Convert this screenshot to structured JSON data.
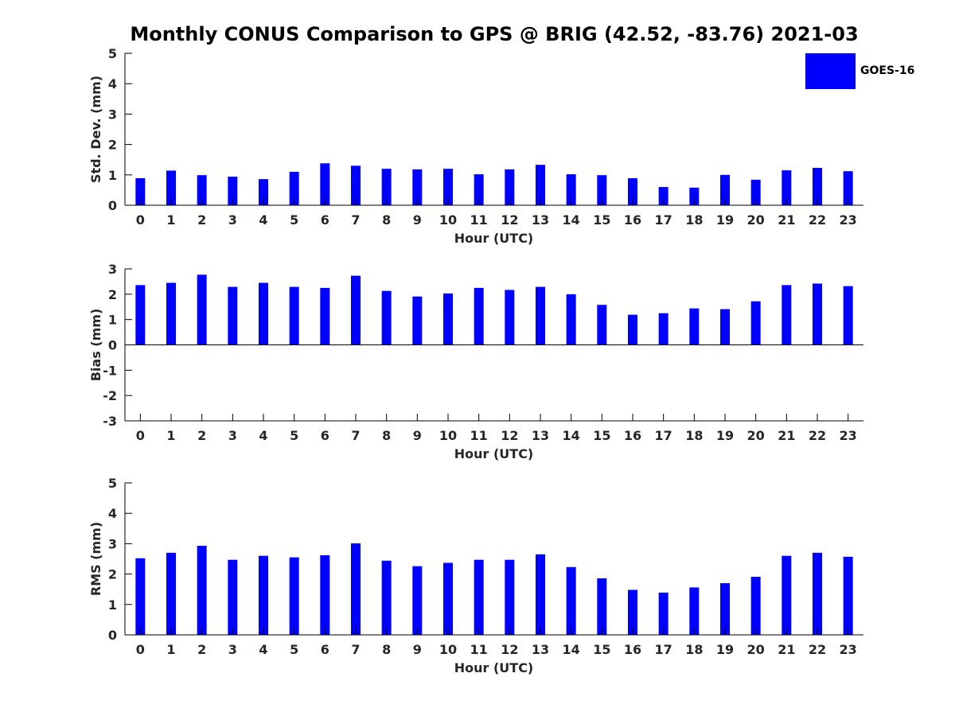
{
  "figure": {
    "title": "Monthly CONUS Comparison to GPS @ BRIG (42.52, -83.76) 2021-03",
    "legend": {
      "label": "GOES-16",
      "color": "#0000ff"
    }
  },
  "chart_data": [
    {
      "type": "bar",
      "categories": [
        "0",
        "1",
        "2",
        "3",
        "4",
        "5",
        "6",
        "7",
        "8",
        "9",
        "10",
        "11",
        "12",
        "13",
        "14",
        "15",
        "16",
        "17",
        "18",
        "19",
        "20",
        "21",
        "22",
        "23"
      ],
      "series": [
        {
          "name": "GOES-16",
          "values": [
            0.89,
            1.14,
            0.99,
            0.94,
            0.86,
            1.1,
            1.38,
            1.3,
            1.2,
            1.18,
            1.2,
            1.02,
            1.18,
            1.33,
            1.02,
            0.99,
            0.89,
            0.6,
            0.58,
            1.0,
            0.84,
            1.15,
            1.23,
            1.12
          ]
        }
      ],
      "xlabel": "Hour (UTC)",
      "ylabel": "Std. Dev. (mm)",
      "ylim": [
        0,
        5
      ],
      "yticks": [
        "0",
        "1",
        "2",
        "3",
        "4",
        "5"
      ],
      "grid": false
    },
    {
      "type": "bar",
      "categories": [
        "0",
        "1",
        "2",
        "3",
        "4",
        "5",
        "6",
        "7",
        "8",
        "9",
        "10",
        "11",
        "12",
        "13",
        "14",
        "15",
        "16",
        "17",
        "18",
        "19",
        "20",
        "21",
        "22",
        "23"
      ],
      "series": [
        {
          "name": "GOES-16",
          "values": [
            2.36,
            2.45,
            2.77,
            2.29,
            2.45,
            2.29,
            2.25,
            2.73,
            2.13,
            1.91,
            2.03,
            2.25,
            2.17,
            2.29,
            2.0,
            1.58,
            1.19,
            1.25,
            1.44,
            1.41,
            1.72,
            2.36,
            2.42,
            2.32
          ]
        }
      ],
      "xlabel": "Hour (UTC)",
      "ylabel": "Bias (mm)",
      "ylim": [
        -3,
        3
      ],
      "yticks": [
        "-3",
        "-2",
        "-1",
        "0",
        "1",
        "2",
        "3"
      ],
      "grid": false
    },
    {
      "type": "bar",
      "categories": [
        "0",
        "1",
        "2",
        "3",
        "4",
        "5",
        "6",
        "7",
        "8",
        "9",
        "10",
        "11",
        "12",
        "13",
        "14",
        "15",
        "16",
        "17",
        "18",
        "19",
        "20",
        "21",
        "22",
        "23"
      ],
      "series": [
        {
          "name": "GOES-16",
          "values": [
            2.52,
            2.7,
            2.93,
            2.47,
            2.6,
            2.55,
            2.62,
            3.01,
            2.44,
            2.26,
            2.37,
            2.47,
            2.47,
            2.65,
            2.23,
            1.86,
            1.48,
            1.39,
            1.56,
            1.7,
            1.91,
            2.6,
            2.7,
            2.57
          ]
        }
      ],
      "xlabel": "Hour (UTC)",
      "ylabel": "RMS (mm)",
      "ylim": [
        0,
        5
      ],
      "yticks": [
        "0",
        "1",
        "2",
        "3",
        "4",
        "5"
      ],
      "grid": false
    }
  ]
}
